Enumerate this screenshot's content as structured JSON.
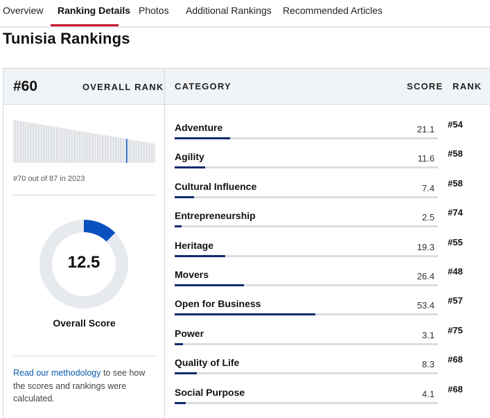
{
  "tabs": [
    {
      "label": "Overview",
      "active": false
    },
    {
      "label": "Ranking Details",
      "active": true
    },
    {
      "label": "Photos",
      "active": false
    },
    {
      "label": "Additional Rankings",
      "active": false
    },
    {
      "label": "Recommended Articles",
      "active": false
    }
  ],
  "accent_color": "#c8102e",
  "bar_color": "#0a2a6c",
  "donut_color": "#0a4fbf",
  "page_title": "Tunisia Rankings",
  "overall": {
    "rank": "#60",
    "rank_label": "OVERALL RANK",
    "out_of_text": "#70 out of 87 in 2023",
    "score": "12.5",
    "score_fraction": 0.125,
    "score_label": "Overall Score",
    "histogram_highlight_index": 69,
    "histogram_count": 87
  },
  "methodology": {
    "link_text": "Read our methodology",
    "rest_text": " to see how the scores and rankings were calculated."
  },
  "columns": {
    "category": "CATEGORY",
    "score": "SCORE",
    "rank": "RANK"
  },
  "categories": [
    {
      "name": "Adventure",
      "score": "21.1",
      "rank": "#54",
      "value": 21.1
    },
    {
      "name": "Agility",
      "score": "11.6",
      "rank": "#58",
      "value": 11.6
    },
    {
      "name": "Cultural Influence",
      "score": "7.4",
      "rank": "#58",
      "value": 7.4
    },
    {
      "name": "Entrepreneurship",
      "score": "2.5",
      "rank": "#74",
      "value": 2.5
    },
    {
      "name": "Heritage",
      "score": "19.3",
      "rank": "#55",
      "value": 19.3
    },
    {
      "name": "Movers",
      "score": "26.4",
      "rank": "#48",
      "value": 26.4
    },
    {
      "name": "Open for Business",
      "score": "53.4",
      "rank": "#57",
      "value": 53.4
    },
    {
      "name": "Power",
      "score": "3.1",
      "rank": "#75",
      "value": 3.1
    },
    {
      "name": "Quality of Life",
      "score": "8.3",
      "rank": "#68",
      "value": 8.3
    },
    {
      "name": "Social Purpose",
      "score": "4.1",
      "rank": "#68",
      "value": 4.1
    }
  ]
}
